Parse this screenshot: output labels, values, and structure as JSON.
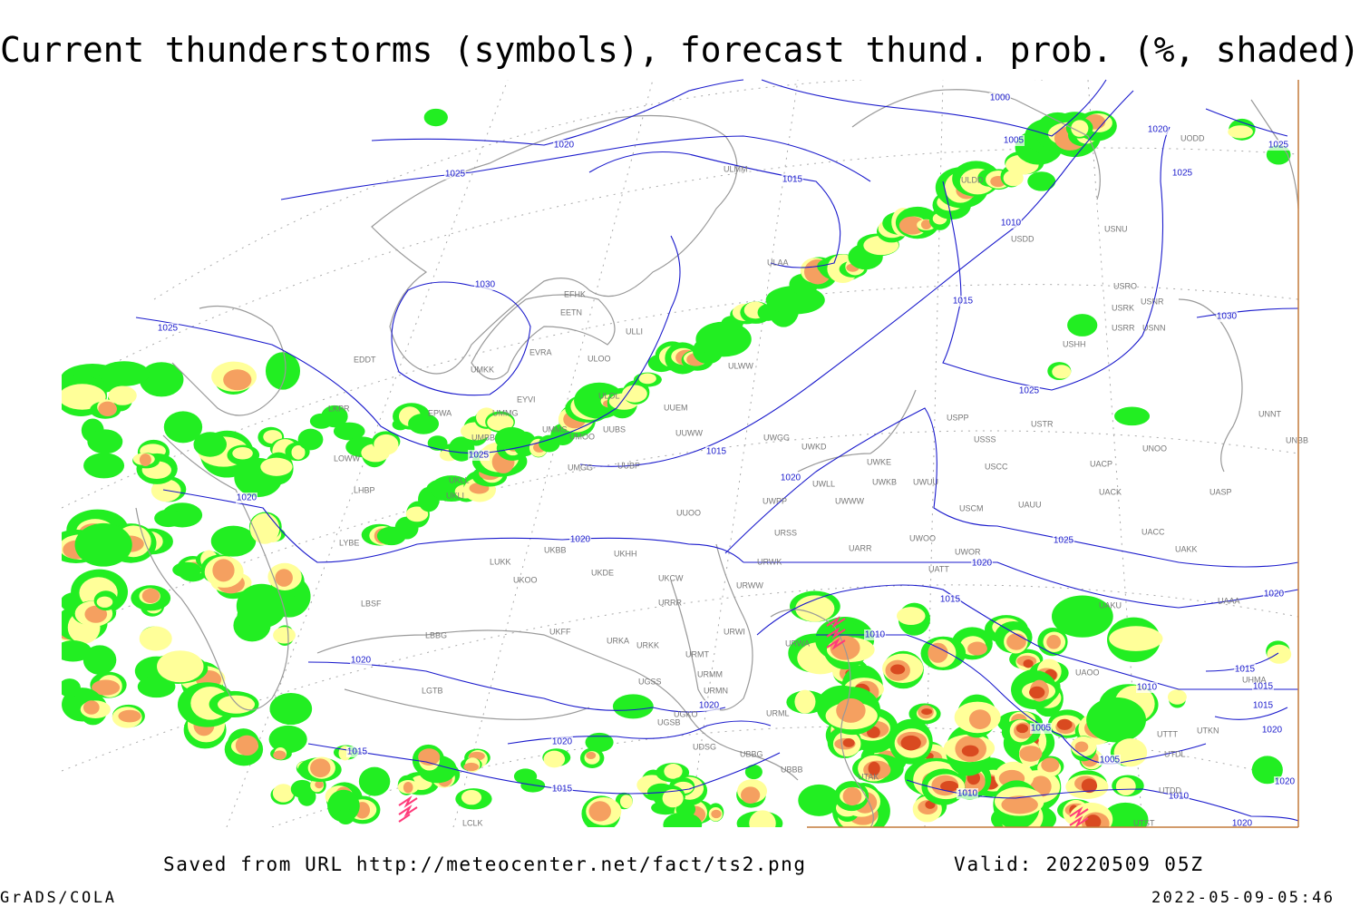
{
  "header": {
    "title": "Current thunderstorms (symbols), forecast thund. prob. (%, shaded)"
  },
  "isobar_labels": [
    "1000",
    "1005",
    "1020",
    "1025",
    "1015",
    "1020",
    "1025",
    "1025",
    "1010",
    "1030",
    "1015",
    "1030",
    "1025",
    "1025",
    "1025",
    "1015",
    "1020",
    "1020",
    "1020",
    "1025",
    "1020",
    "1015",
    "1020",
    "1010",
    "1020",
    "1015",
    "1015",
    "1010",
    "1020",
    "1015",
    "1005",
    "1020",
    "1020",
    "1015",
    "1005",
    "1020",
    "1015",
    "1010",
    "1010",
    "1020"
  ],
  "stations": [
    "UMKK",
    "EFHK",
    "EETN",
    "EVRA",
    "ULOO",
    "ULLI",
    "ULOL",
    "EYVI",
    "UMMG",
    "EPWA",
    "EDDT",
    "LKPR",
    "UMMS",
    "UMOO",
    "UUBS",
    "UUEM",
    "ULWW",
    "UUWW",
    "ULAA",
    "ULDD",
    "ULMM",
    "USDD",
    "USNU",
    "USRO",
    "USRK",
    "USNR",
    "USRR",
    "USNN",
    "USHH",
    "UWGG",
    "UWKD",
    "UWKE",
    "UWKB",
    "UWUU",
    "UWLL",
    "UWPP",
    "UWWW",
    "USPP",
    "USSS",
    "USTR",
    "USCC",
    "UACP",
    "UNOO",
    "UNNT",
    "UNBB",
    "UACK",
    "UASP",
    "UAUU",
    "USCM",
    "UACC",
    "UAKK",
    "UATT",
    "UWOR",
    "UWOO",
    "UARR",
    "URWW",
    "URWK",
    "URSS",
    "UUOO",
    "UMGG",
    "UUBP",
    "UKLI",
    "UKLL",
    "LOWW",
    "LHBP",
    "LYBE",
    "LUKK",
    "UKOO",
    "UKFF",
    "UKDE",
    "UKHH",
    "UKCW",
    "URRR",
    "LBSF",
    "LBBG",
    "URKA",
    "URKK",
    "URMT",
    "URMM",
    "URMN",
    "URWI",
    "URWA",
    "UGSS",
    "UGKO",
    "UGSB",
    "UDSG",
    "UBBG",
    "UBBB",
    "URML",
    "UTAK",
    "UAAA",
    "UAKU",
    "UAOO",
    "UTTT",
    "UTKN",
    "UTDL",
    "UTDD",
    "UTST",
    "LGTB",
    "LCLK",
    "UMBB",
    "UKBB",
    "UODD",
    "UHMA"
  ],
  "footer": {
    "source": "Saved from URL http://meteocenter.net/fact/ts2.png",
    "valid": "Valid: 20220509 05Z",
    "software": "GrADS/COLA",
    "timestamp": "2022-05-09-05:46"
  }
}
